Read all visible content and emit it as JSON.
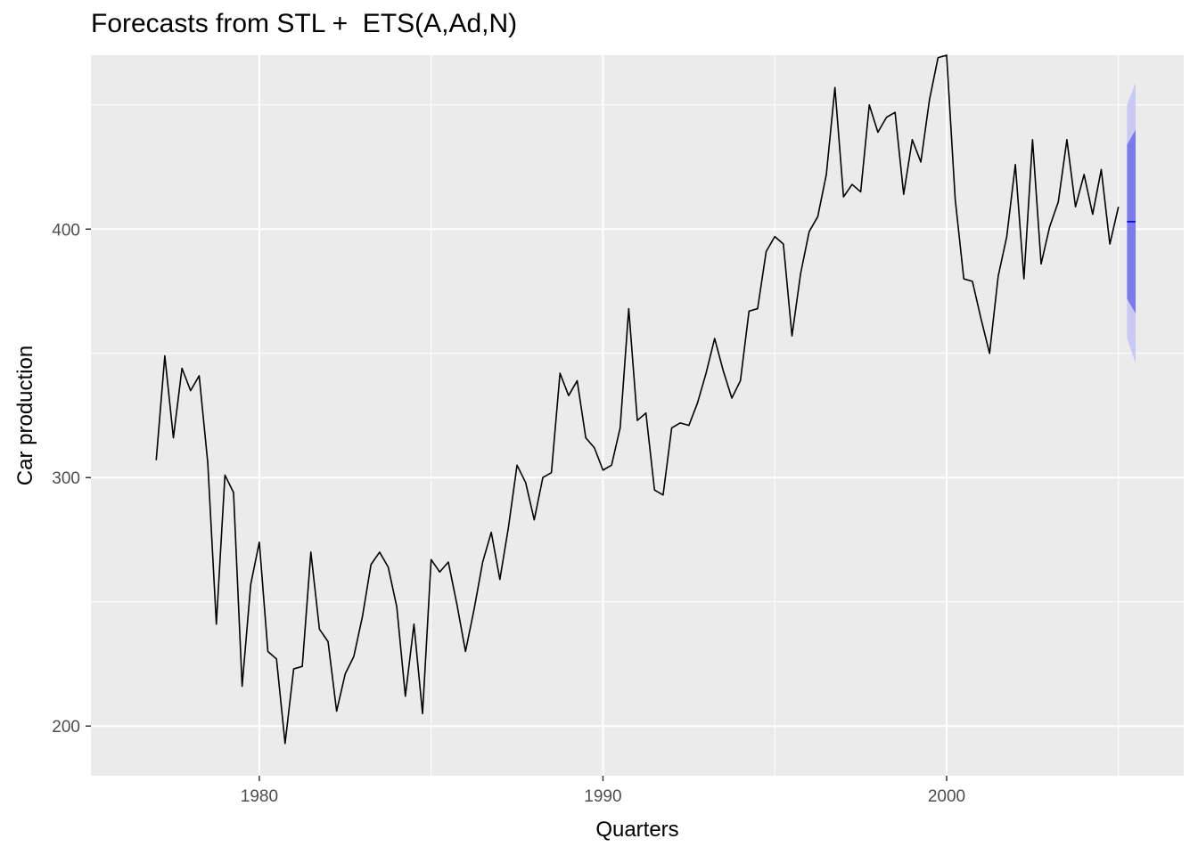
{
  "chart_data": {
    "type": "line",
    "title": "Forecasts from STL +  ETS(A,Ad,N)",
    "xlabel": "Quarters",
    "ylabel": "Car production",
    "xlim": [
      1975.1,
      2006.9
    ],
    "ylim": [
      180,
      470
    ],
    "x_ticks": [
      1980,
      1990,
      2000
    ],
    "x_tick_labels": [
      "1980",
      "1990",
      "2000"
    ],
    "y_ticks": [
      200,
      300,
      400
    ],
    "y_tick_labels": [
      "200",
      "300",
      "400"
    ],
    "grid": true,
    "legend": "none",
    "colors": {
      "panel_bg": "#ebebeb",
      "grid_major": "#ffffff",
      "line": "#000000",
      "forecast_line": "#0000cc",
      "pi80": "#7b7bec",
      "pi95": "#c9c9f4"
    },
    "series": [
      {
        "x_start": 1977.0,
        "step": 0.25,
        "values": [
          307,
          349,
          316,
          344,
          335,
          341,
          306,
          241,
          301,
          294,
          216,
          257,
          274,
          230,
          227,
          193,
          223,
          224,
          270,
          239,
          234,
          206,
          221,
          228,
          244,
          265,
          270,
          264,
          248,
          212,
          241,
          205,
          267,
          262,
          266,
          249,
          230,
          247,
          266,
          278,
          259,
          280,
          305,
          298,
          283,
          300,
          302,
          342,
          333,
          339,
          316,
          312,
          303,
          305,
          320,
          368,
          323,
          326,
          295,
          293,
          320,
          322,
          321,
          330,
          342,
          356,
          343,
          332,
          339,
          367,
          368,
          391,
          397,
          394,
          357,
          382,
          399,
          405,
          422,
          457,
          413,
          418,
          415,
          450,
          439,
          445,
          447,
          414,
          436,
          427,
          452,
          469,
          470,
          412,
          380,
          379,
          364,
          350,
          381,
          397,
          426,
          380,
          436,
          386,
          401,
          411,
          436,
          409,
          422,
          406,
          424,
          394,
          409
        ]
      }
    ],
    "forecast": {
      "x": [
        2005.25,
        2005.5
      ],
      "mean": [
        403,
        403
      ],
      "lower80": [
        372,
        366
      ],
      "upper80": [
        434,
        440
      ],
      "lower95": [
        356,
        346
      ],
      "upper95": [
        450,
        459
      ]
    }
  }
}
